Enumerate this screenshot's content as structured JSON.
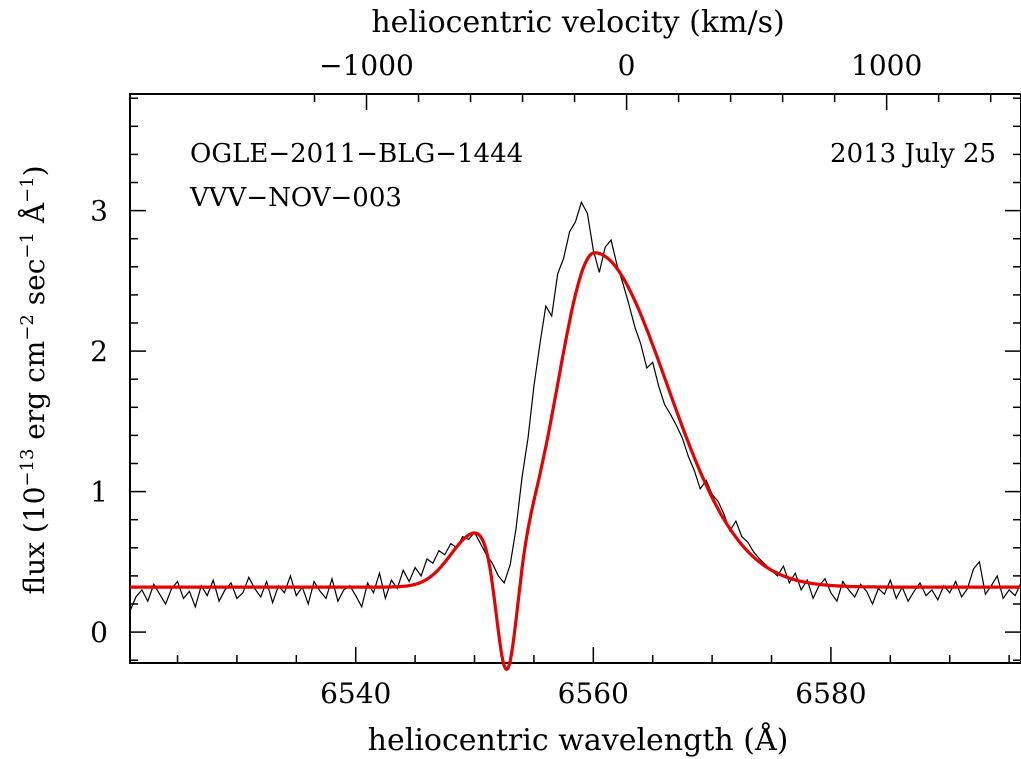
{
  "chart_data": {
    "type": "line",
    "xlabel": "heliocentric wavelength (Å)",
    "x2label": "heliocentric velocity (km/s)",
    "ylabel_prefix": "flux (10",
    "ylabel_exp1": "−13",
    "ylabel_mid": " erg cm",
    "ylabel_exp2": "−2",
    "ylabel_mid2": " sec",
    "ylabel_exp3": "−1",
    "ylabel_mid3": " Å",
    "ylabel_exp4": "−1",
    "ylabel_suffix": ")",
    "xlim": [
      6521,
      6596
    ],
    "ylim": [
      -0.22,
      3.83
    ],
    "x_ticks": [
      6540,
      6560,
      6580
    ],
    "x_tick_labels": [
      "6540",
      "6560",
      "6580"
    ],
    "y_ticks": [
      0,
      1,
      2,
      3
    ],
    "y_tick_labels": [
      "0",
      "1",
      "2",
      "3"
    ],
    "velocity_ticks": [
      -1000,
      0,
      1000
    ],
    "velocity_tick_labels": [
      "−1000",
      "0",
      "1000"
    ],
    "annotation_left_1": "OGLE−2011−BLG−1444",
    "annotation_left_2": "VVV−NOV−003",
    "annotation_right": "2013 July 25",
    "series": [
      {
        "color": "#000000",
        "x": [
          6521.0,
          6521.5,
          6522.0,
          6522.5,
          6523.0,
          6523.5,
          6524.0,
          6524.5,
          6525.0,
          6525.5,
          6526.0,
          6526.5,
          6527.0,
          6527.5,
          6528.0,
          6528.5,
          6529.0,
          6529.5,
          6530.0,
          6530.5,
          6531.0,
          6531.5,
          6532.0,
          6532.5,
          6533.0,
          6533.5,
          6534.0,
          6534.5,
          6535.0,
          6535.5,
          6536.0,
          6536.5,
          6537.0,
          6537.5,
          6538.0,
          6538.5,
          6539.0,
          6539.5,
          6540.0,
          6540.5,
          6541.0,
          6541.5,
          6542.0,
          6542.5,
          6543.0,
          6543.5,
          6544.0,
          6544.5,
          6545.0,
          6545.5,
          6546.0,
          6546.5,
          6547.0,
          6547.5,
          6548.0,
          6548.5,
          6549.0,
          6549.5,
          6550.0,
          6550.5,
          6551.0,
          6551.5,
          6552.0,
          6552.5,
          6553.0,
          6553.5,
          6554.0,
          6554.5,
          6555.0,
          6555.5,
          6556.0,
          6556.5,
          6557.0,
          6557.5,
          6558.0,
          6558.5,
          6559.0,
          6559.5,
          6560.0,
          6560.5,
          6561.0,
          6561.5,
          6562.0,
          6562.5,
          6563.0,
          6563.5,
          6564.0,
          6564.5,
          6565.0,
          6565.5,
          6566.0,
          6566.5,
          6567.0,
          6567.5,
          6568.0,
          6568.5,
          6569.0,
          6569.5,
          6570.0,
          6570.5,
          6571.0,
          6571.5,
          6572.0,
          6572.5,
          6573.0,
          6573.5,
          6574.0,
          6574.5,
          6575.0,
          6575.5,
          6576.0,
          6576.5,
          6577.0,
          6577.5,
          6578.0,
          6578.5,
          6579.0,
          6579.5,
          6580.0,
          6580.5,
          6581.0,
          6581.5,
          6582.0,
          6582.5,
          6583.0,
          6583.5,
          6584.0,
          6584.5,
          6585.0,
          6585.5,
          6586.0,
          6586.5,
          6587.0,
          6587.5,
          6588.0,
          6588.5,
          6589.0,
          6589.5,
          6590.0,
          6590.5,
          6591.0,
          6591.5,
          6592.0,
          6592.5,
          6593.0,
          6593.5,
          6594.0,
          6594.5,
          6595.0,
          6595.5,
          6596.0
        ],
        "y": [
          0.15,
          0.25,
          0.3,
          0.22,
          0.34,
          0.27,
          0.2,
          0.31,
          0.36,
          0.24,
          0.29,
          0.18,
          0.33,
          0.26,
          0.37,
          0.22,
          0.3,
          0.35,
          0.24,
          0.28,
          0.39,
          0.31,
          0.25,
          0.36,
          0.21,
          0.33,
          0.28,
          0.4,
          0.26,
          0.32,
          0.2,
          0.36,
          0.29,
          0.24,
          0.38,
          0.22,
          0.3,
          0.33,
          0.26,
          0.18,
          0.35,
          0.28,
          0.42,
          0.24,
          0.37,
          0.31,
          0.44,
          0.36,
          0.46,
          0.4,
          0.52,
          0.49,
          0.58,
          0.55,
          0.63,
          0.6,
          0.68,
          0.66,
          0.71,
          0.63,
          0.55,
          0.49,
          0.4,
          0.35,
          0.48,
          0.74,
          1.1,
          1.38,
          1.75,
          2.05,
          2.32,
          2.25,
          2.55,
          2.66,
          2.85,
          2.92,
          3.06,
          2.98,
          2.72,
          2.56,
          2.74,
          2.79,
          2.61,
          2.48,
          2.33,
          2.17,
          2.05,
          1.88,
          1.92,
          1.75,
          1.62,
          1.55,
          1.47,
          1.38,
          1.25,
          1.15,
          1.02,
          1.08,
          0.98,
          0.93,
          0.84,
          0.72,
          0.79,
          0.68,
          0.64,
          0.57,
          0.52,
          0.48,
          0.44,
          0.4,
          0.47,
          0.35,
          0.42,
          0.3,
          0.37,
          0.24,
          0.33,
          0.38,
          0.28,
          0.22,
          0.36,
          0.3,
          0.25,
          0.34,
          0.29,
          0.2,
          0.31,
          0.27,
          0.37,
          0.24,
          0.32,
          0.22,
          0.29,
          0.35,
          0.26,
          0.3,
          0.23,
          0.33,
          0.28,
          0.36,
          0.25,
          0.31,
          0.45,
          0.5,
          0.27,
          0.33,
          0.4,
          0.24,
          0.3,
          0.26,
          0.35
        ]
      },
      {
        "color": "#e60000",
        "function": "model",
        "continuum": 0.32,
        "emission_amp": 2.38,
        "emission_center": 6560.1,
        "emission_sigma_left": 3.1,
        "emission_sigma_right": 6.1,
        "absorption_amp": 0.9,
        "absorption_center": 6552.7,
        "absorption_sigma": 0.85,
        "blue_bump_amp": 0.38,
        "blue_bump_center": 6550.1,
        "blue_bump_sigma": 2.1
      }
    ]
  }
}
